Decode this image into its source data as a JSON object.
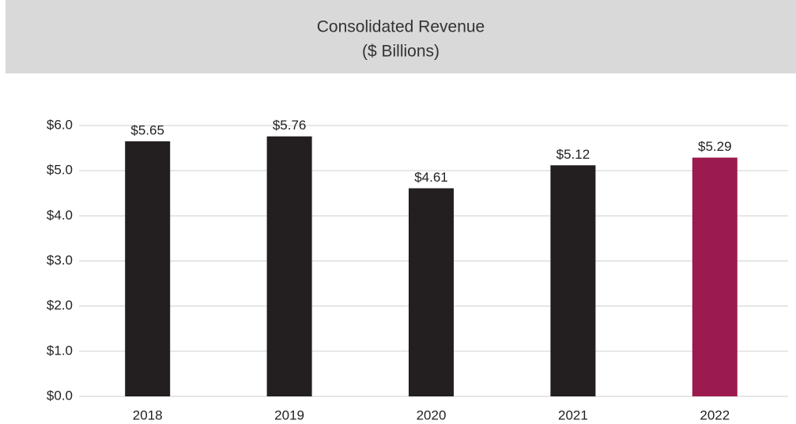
{
  "chart_data": {
    "type": "bar",
    "title": [
      "Consolidated Revenue",
      "($ Billions)"
    ],
    "categories": [
      "2018",
      "2019",
      "2020",
      "2021",
      "2022"
    ],
    "values": [
      5.65,
      5.76,
      4.61,
      5.12,
      5.29
    ],
    "value_labels": [
      "$5.65",
      "$5.76",
      "$4.61",
      "$5.12",
      "$5.29"
    ],
    "colors": [
      "#231f20",
      "#231f20",
      "#231f20",
      "#231f20",
      "#9b1b4f"
    ],
    "ylim": [
      0,
      6
    ],
    "yticks": [
      {
        "value": 0,
        "label": "$0.0"
      },
      {
        "value": 1,
        "label": "$1.0"
      },
      {
        "value": 2,
        "label": "$2.0"
      },
      {
        "value": 3,
        "label": "$3.0"
      },
      {
        "value": 4,
        "label": "$4.0"
      },
      {
        "value": 5,
        "label": "$5.0"
      },
      {
        "value": 6,
        "label": "$6.0"
      }
    ],
    "grid": true
  }
}
